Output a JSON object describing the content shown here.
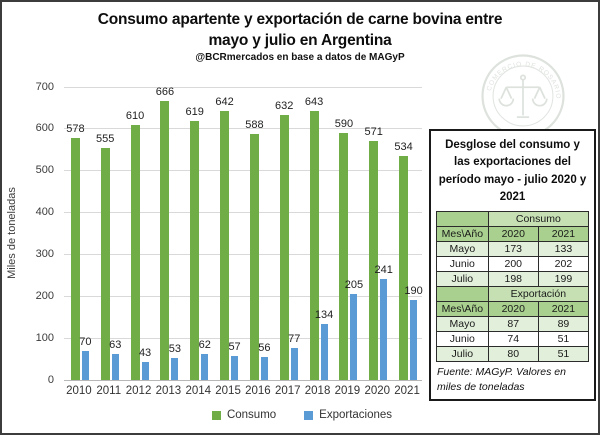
{
  "header": {
    "title_line1": "Consumo apartente y exportación de carne bovina entre",
    "title_line2": "mayo y julio en Argentina",
    "subtitle": "@BCRmercados en base a datos de MAGyP"
  },
  "watermark": {
    "icon": "scales-seal-icon",
    "ring_text": "COMERCIO DE ROSARIO"
  },
  "chart_data": {
    "type": "bar",
    "title": "Consumo apartente y exportación de carne bovina entre mayo y julio en Argentina",
    "categories": [
      "2010",
      "2011",
      "2012",
      "2013",
      "2014",
      "2015",
      "2016",
      "2017",
      "2018",
      "2019",
      "2020",
      "2021"
    ],
    "series": [
      {
        "name": "Consumo",
        "color": "#70AD47",
        "values": [
          578,
          555,
          610,
          666,
          619,
          642,
          588,
          632,
          643,
          590,
          571,
          534
        ]
      },
      {
        "name": "Exportaciones",
        "color": "#5B9BD5",
        "values": [
          70,
          63,
          43,
          53,
          62,
          57,
          56,
          77,
          134,
          205,
          241,
          190
        ]
      }
    ],
    "xlabel": "",
    "ylabel": "Miles de toneladas",
    "ylim": [
      0,
      700
    ],
    "ytick_step": 100,
    "grid": true,
    "data_labels": true,
    "legend_position": "bottom"
  },
  "colors": {
    "bar_green": "#70AD47",
    "bar_blue": "#5B9BD5",
    "gridline": "#D9D9D9",
    "table_header_green": "#A9D08E",
    "table_section_green": "#C6E0B4",
    "table_band_green": "#E2EFDA"
  },
  "side_panel": {
    "title": "Desglose del consumo y las exportaciones del período mayo - julio 2020 y 2021",
    "col_header": "Mes\\Año",
    "years": [
      "2020",
      "2021"
    ],
    "sections": [
      {
        "label": "Consumo",
        "rows": [
          {
            "mes": "Mayo",
            "values": [
              173,
              133
            ]
          },
          {
            "mes": "Junio",
            "values": [
              200,
              202
            ]
          },
          {
            "mes": "Julio",
            "values": [
              198,
              199
            ]
          }
        ]
      },
      {
        "label": "Exportación",
        "rows": [
          {
            "mes": "Mayo",
            "values": [
              87,
              89
            ]
          },
          {
            "mes": "Junio",
            "values": [
              74,
              51
            ]
          },
          {
            "mes": "Julio",
            "values": [
              80,
              51
            ]
          }
        ]
      }
    ],
    "footer": "Fuente: MAGyP. Valores en miles de toneladas"
  }
}
